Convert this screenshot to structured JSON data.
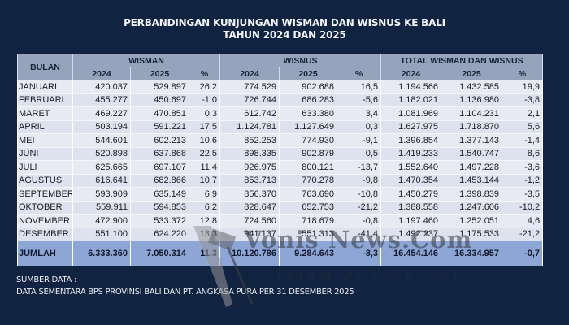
{
  "title": {
    "line1": "PERBANDINGAN KUNJUNGAN WISMAN DAN WISNUS KE BALI",
    "line2": "TAHUN 2024 DAN 2025"
  },
  "table": {
    "header": {
      "bulan": "BULAN",
      "groups": [
        "WISMAN",
        "WISNUS",
        "TOTAL WISMAN DAN WISNUS"
      ],
      "sub": [
        "2024",
        "2025",
        "%",
        "2024",
        "2025",
        "%",
        "2024",
        "2025",
        "%"
      ]
    },
    "rows": [
      {
        "month": "JANUARI",
        "c": [
          "420.037",
          "529.897",
          "26,2",
          "774.529",
          "902.688",
          "16,5",
          "1.194.566",
          "1.432.585",
          "19,9"
        ]
      },
      {
        "month": "FEBRUARI",
        "c": [
          "455.277",
          "450.697",
          "-1,0",
          "726.744",
          "686.283",
          "-5,6",
          "1.182.021",
          "1.136.980",
          "-3,8"
        ]
      },
      {
        "month": "MARET",
        "c": [
          "469.227",
          "470.851",
          "0,3",
          "612.742",
          "633.380",
          "3,4",
          "1.081.969",
          "1.104.231",
          "2,1"
        ]
      },
      {
        "month": "APRIL",
        "c": [
          "503.194",
          "591.221",
          "17,5",
          "1.124.781",
          "1.127.649",
          "0,3",
          "1.627.975",
          "1.718.870",
          "5,6"
        ]
      },
      {
        "month": "MEI",
        "c": [
          "544.601",
          "602.213",
          "10,6",
          "852.253",
          "774.930",
          "-9,1",
          "1.396.854",
          "1.377.143",
          "-1,4"
        ]
      },
      {
        "month": "JUNI",
        "c": [
          "520.898",
          "637.868",
          "22,5",
          "898.335",
          "902.879",
          "0,5",
          "1.419.233",
          "1.540.747",
          "8,6"
        ]
      },
      {
        "month": "JULI",
        "c": [
          "625.665",
          "697.107",
          "11,4",
          "926.975",
          "800.121",
          "-13,7",
          "1.552.640",
          "1.497.228",
          "-3,6"
        ]
      },
      {
        "month": "AGUSTUS",
        "c": [
          "616.641",
          "682.866",
          "10,7",
          "853.713",
          "770.278",
          "-9,8",
          "1.470.354",
          "1.453.144",
          "-1,2"
        ]
      },
      {
        "month": "SEPTEMBER",
        "c": [
          "593.909",
          "635.149",
          "6,9",
          "856.370",
          "763.690",
          "-10,8",
          "1.450.279",
          "1.398.839",
          "-3,5"
        ]
      },
      {
        "month": "OKTOBER",
        "c": [
          "559.911",
          "594.853",
          "6,2",
          "828.647",
          "652.753",
          "-21,2",
          "1.388.558",
          "1.247.606",
          "-10,2"
        ]
      },
      {
        "month": "NOVEMBER",
        "c": [
          "472.900",
          "533.372",
          "12,8",
          "724.560",
          "718.679",
          "-0,8",
          "1.197.460",
          "1.252.051",
          "4,6"
        ]
      },
      {
        "month": "DESEMBER",
        "c": [
          "551.100",
          "624.220",
          "13,3",
          "941.137",
          "551.313",
          "-41,4",
          "1.492.237",
          "1.175.533",
          "-21,2"
        ]
      }
    ],
    "total": {
      "month": "JUMLAH",
      "c": [
        "6.333.360",
        "7.050.314",
        "11,3",
        "10.120.786",
        "9.284.643",
        "-8,3",
        "16.454.146",
        "16.334.957",
        "-0,7"
      ]
    }
  },
  "source": {
    "label": "SUMBER DATA :",
    "text": "DATA SEMENTARA BPS PROVINSI BALI DAN PT. ANGKASA PURA PER 31 DESEMBER 2025"
  },
  "watermark": {
    "brand": "Vonis News.Com",
    "tagline": "Tajam dan Akurat"
  },
  "colors": {
    "background": "#102340",
    "header": "#95a3bc",
    "row": "#e7eaf2",
    "total_row": "#8ea6d6"
  }
}
